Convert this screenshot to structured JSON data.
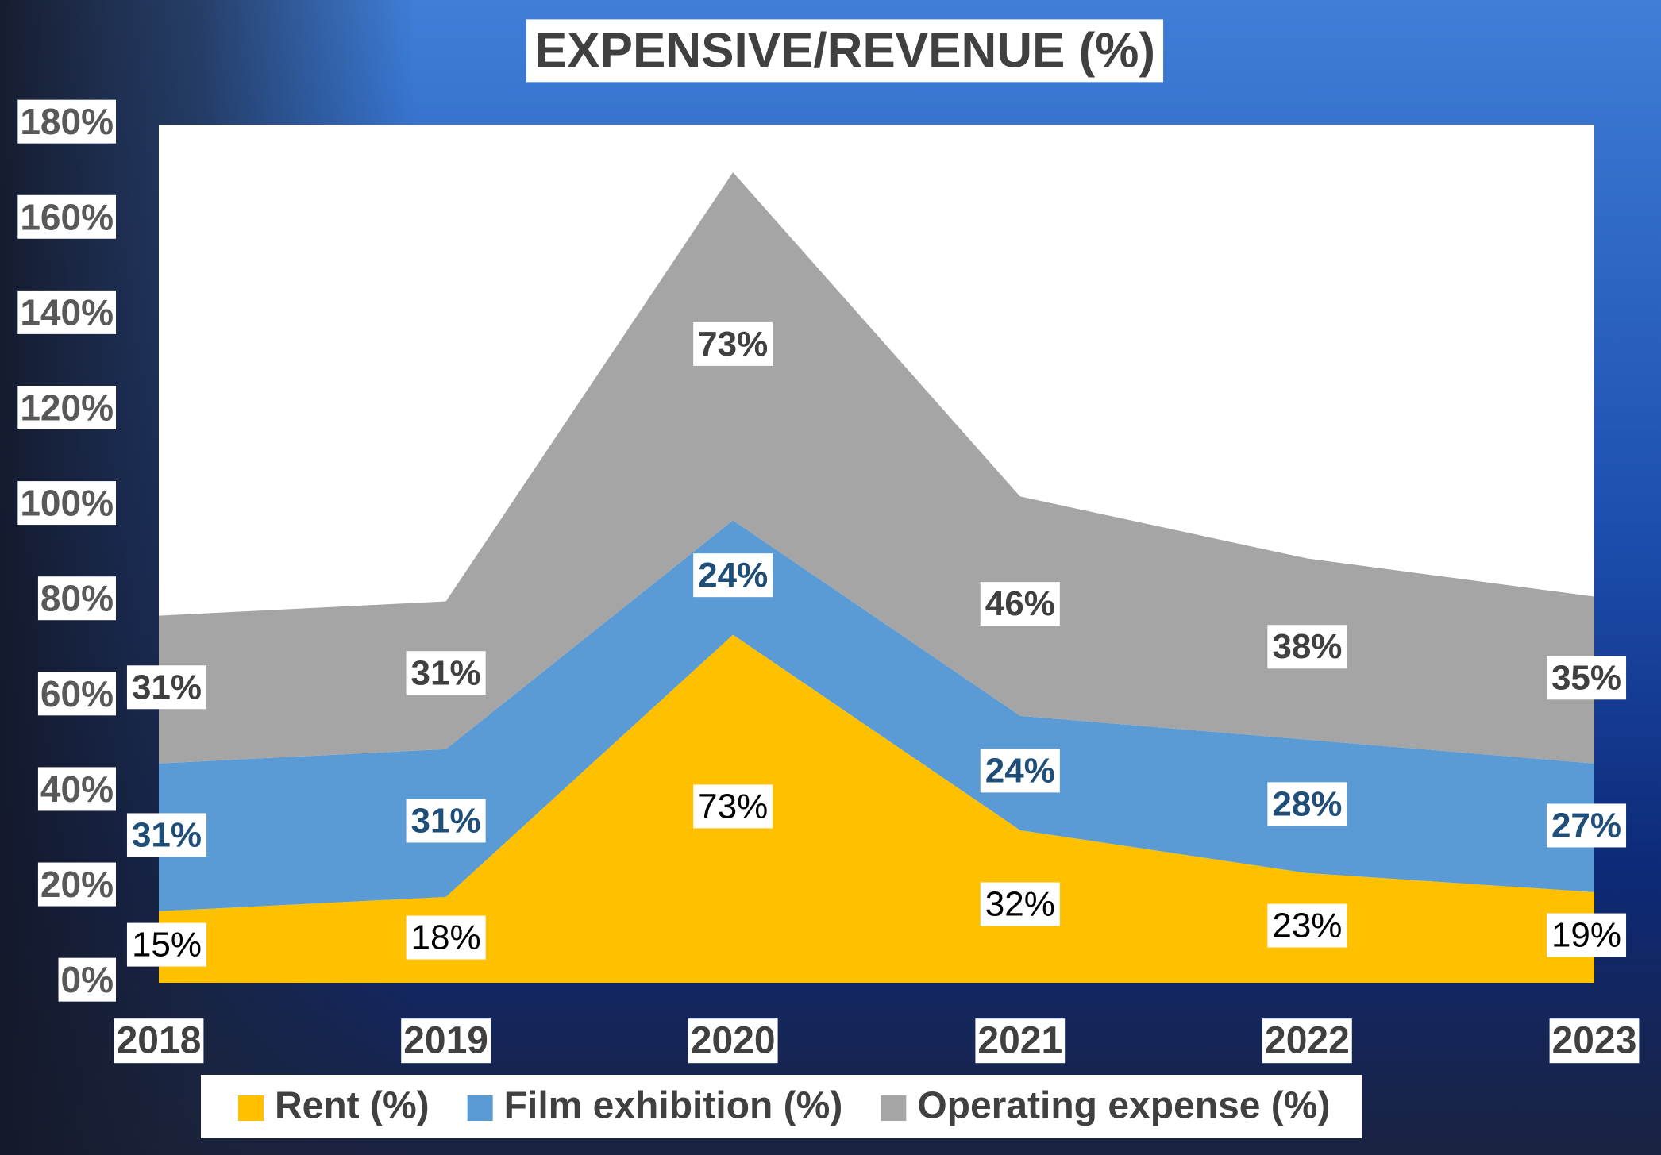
{
  "chart_data": {
    "type": "stacked-area",
    "title": "EXPENSIVE/REVENUE (%)",
    "categories": [
      "2018",
      "2019",
      "2020",
      "2021",
      "2022",
      "2023"
    ],
    "series": [
      {
        "name": "Rent (%)",
        "color": "#ffc000",
        "label_color": "#000000",
        "label_bold": false,
        "values": [
          15,
          18,
          73,
          32,
          23,
          19
        ],
        "value_labels": [
          "15%",
          "18%",
          "73%",
          "32%",
          "23%",
          "19%"
        ]
      },
      {
        "name": "Film exhibition (%)",
        "color": "#5b9bd5",
        "label_color": "#1f4e79",
        "label_bold": true,
        "values": [
          31,
          31,
          24,
          24,
          28,
          27
        ],
        "value_labels": [
          "31%",
          "31%",
          "24%",
          "24%",
          "28%",
          "27%"
        ]
      },
      {
        "name": "Operating expense (%)",
        "color": "#a5a5a5",
        "label_color": "#404040",
        "label_bold": true,
        "values": [
          31,
          31,
          73,
          46,
          38,
          35
        ],
        "value_labels": [
          "31%",
          "31%",
          "73%",
          "46%",
          "38%",
          "35%"
        ]
      }
    ],
    "ylim": [
      0,
      180
    ],
    "yticks": [
      {
        "value": 0,
        "label": "0%"
      },
      {
        "value": 20,
        "label": "20%"
      },
      {
        "value": 40,
        "label": "40%"
      },
      {
        "value": 60,
        "label": "60%"
      },
      {
        "value": 80,
        "label": "80%"
      },
      {
        "value": 100,
        "label": "100%"
      },
      {
        "value": 120,
        "label": "120%"
      },
      {
        "value": 140,
        "label": "140%"
      },
      {
        "value": 160,
        "label": "160%"
      },
      {
        "value": 180,
        "label": "180%"
      }
    ],
    "legend": "bottom",
    "grid": false
  }
}
